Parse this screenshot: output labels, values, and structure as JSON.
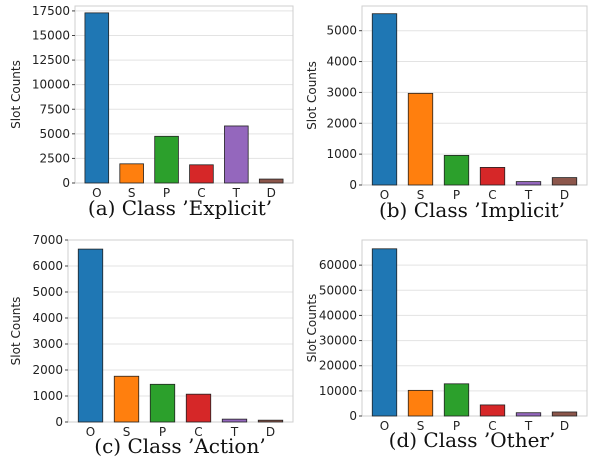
{
  "chart_data": [
    {
      "type": "bar",
      "caption": "(a) Class ’Explicit’",
      "ylabel": "Slot Counts",
      "categories": [
        "O",
        "S",
        "P",
        "C",
        "T",
        "D"
      ],
      "values": [
        17300,
        1950,
        4750,
        1850,
        5800,
        400
      ],
      "ylim": [
        0,
        18000
      ],
      "yticks": [
        0,
        2500,
        5000,
        7500,
        10000,
        12500,
        15000,
        17500
      ],
      "grid": true
    },
    {
      "type": "bar",
      "caption": "(b) Class ’Implicit’",
      "ylabel": "Slot Counts",
      "categories": [
        "O",
        "S",
        "P",
        "C",
        "T",
        "D"
      ],
      "values": [
        5550,
        2970,
        960,
        570,
        110,
        240
      ],
      "ylim": [
        0,
        5800
      ],
      "yticks": [
        0,
        1000,
        2000,
        3000,
        4000,
        5000
      ],
      "grid": true
    },
    {
      "type": "bar",
      "caption": "(c) Class ’Action’",
      "ylabel": "Slot Counts",
      "categories": [
        "O",
        "S",
        "P",
        "C",
        "T",
        "D"
      ],
      "values": [
        6650,
        1760,
        1450,
        1070,
        110,
        70
      ],
      "ylim": [
        0,
        7000
      ],
      "yticks": [
        0,
        1000,
        2000,
        3000,
        4000,
        5000,
        6000,
        7000
      ],
      "grid": true
    },
    {
      "type": "bar",
      "caption": "(d) Class ’Other’",
      "ylabel": "Slot Counts",
      "categories": [
        "O",
        "S",
        "P",
        "C",
        "T",
        "D"
      ],
      "values": [
        66500,
        10200,
        12800,
        4400,
        1300,
        1600
      ],
      "ylim": [
        0,
        70000
      ],
      "yticks": [
        0,
        10000,
        20000,
        30000,
        40000,
        50000,
        60000
      ],
      "grid": true
    }
  ],
  "colors": [
    "#1f77b4",
    "#ff7f0e",
    "#2ca02c",
    "#d62728",
    "#9467bd",
    "#8c564b"
  ]
}
